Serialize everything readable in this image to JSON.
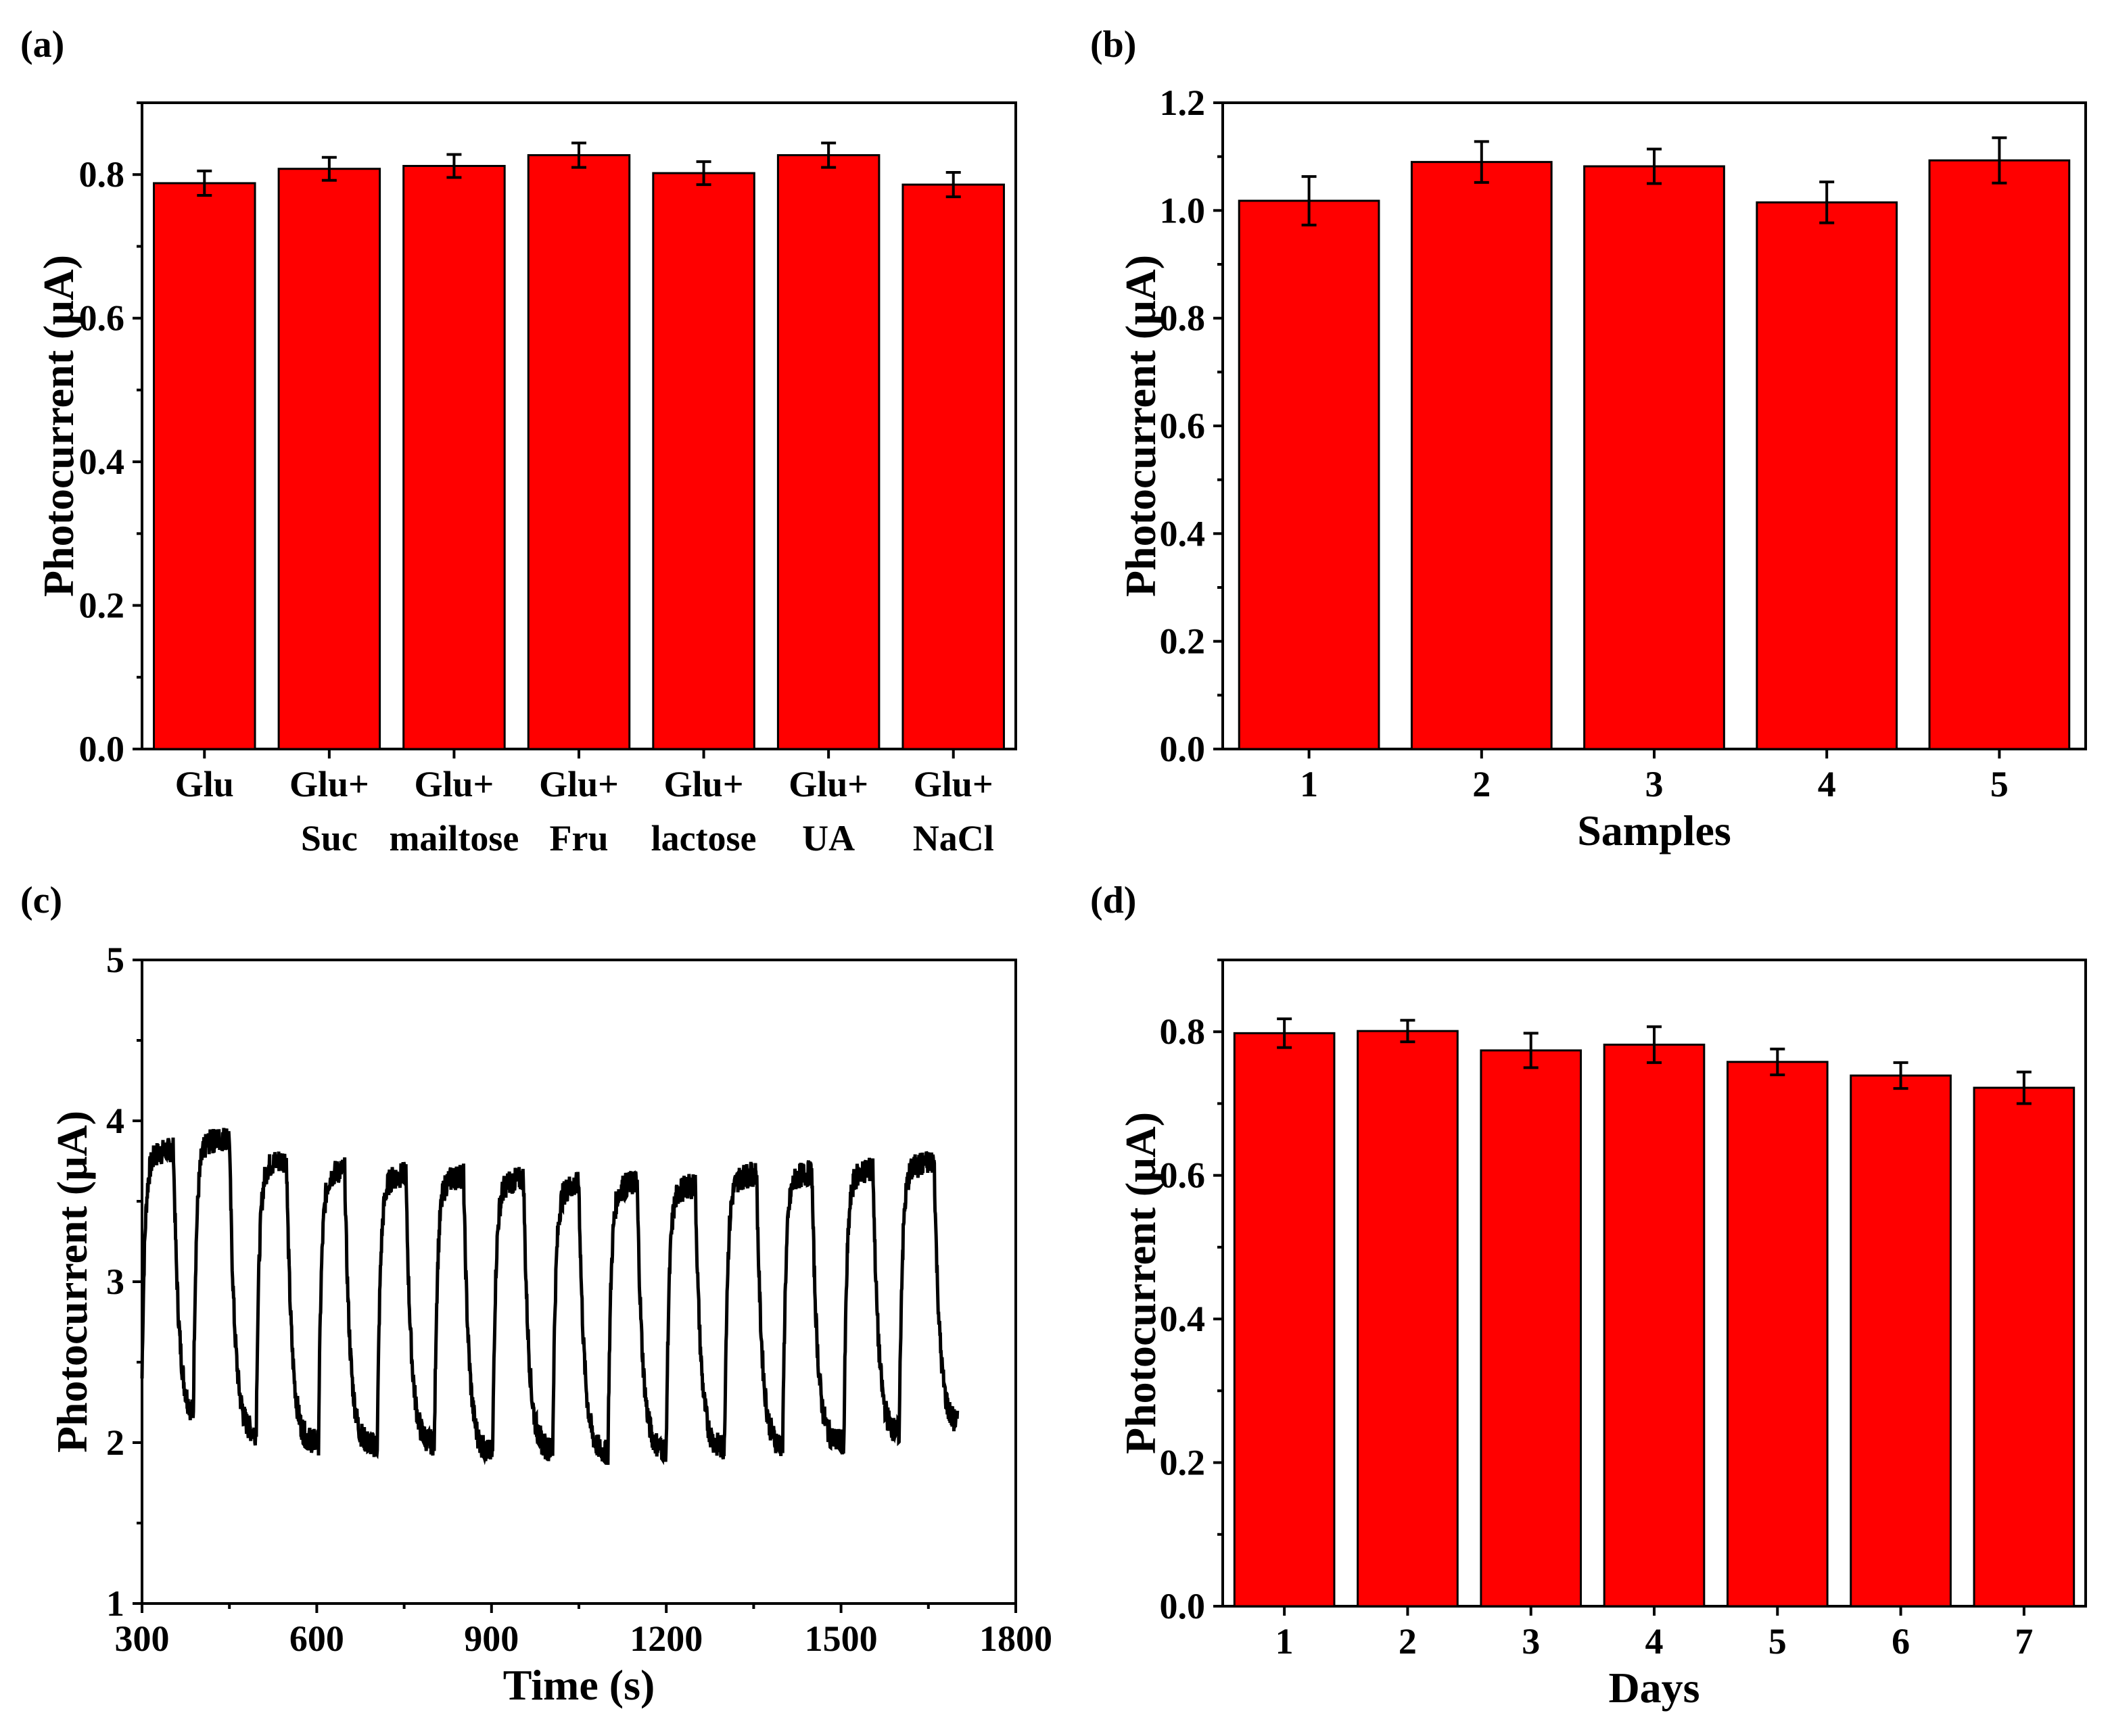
{
  "colors": {
    "bar": "#ff0000",
    "line": "#000000",
    "axis": "#000000"
  },
  "chart_data": [
    {
      "panel": "(a)",
      "type": "bar",
      "categories": [
        [
          "Glu",
          ""
        ],
        [
          "Glu+",
          "Suc"
        ],
        [
          "Glu+",
          "mailtose"
        ],
        [
          "Glu+",
          "Fru"
        ],
        [
          "Glu+",
          "lactose"
        ],
        [
          "Glu+",
          "UA"
        ],
        [
          "Glu+",
          "NaCl"
        ]
      ],
      "values": [
        0.788,
        0.808,
        0.812,
        0.827,
        0.802,
        0.827,
        0.786
      ],
      "errors": [
        0.017,
        0.016,
        0.016,
        0.017,
        0.016,
        0.017,
        0.017
      ],
      "xlabel": "",
      "ylabel": "Photocurrent (μA)",
      "ylim": [
        0,
        0.9
      ],
      "yticks": [
        "0.0",
        "0.2",
        "0.4",
        "0.6",
        "0.8"
      ]
    },
    {
      "panel": "(b)",
      "type": "bar",
      "categories": [
        [
          "1"
        ],
        [
          "2"
        ],
        [
          "3"
        ],
        [
          "4"
        ],
        [
          "5"
        ]
      ],
      "values": [
        1.018,
        1.09,
        1.082,
        1.015,
        1.093
      ],
      "errors": [
        0.045,
        0.038,
        0.032,
        0.038,
        0.042
      ],
      "xlabel": "Samples",
      "ylabel": "Photocurrent (μA)",
      "ylim": [
        0,
        1.2
      ],
      "yticks": [
        "0.0",
        "0.2",
        "0.4",
        "0.6",
        "0.8",
        "1.0",
        "1.2"
      ]
    },
    {
      "panel": "(c)",
      "type": "line",
      "xlabel": "Time (s)",
      "ylabel": "Photocurrent (μA)",
      "xlim": [
        300,
        1800
      ],
      "ylim": [
        1,
        5
      ],
      "xticks": [
        "300",
        "600",
        "900",
        "1200",
        "1500",
        "1800"
      ],
      "yticks": [
        "1",
        "2",
        "3",
        "4",
        "5"
      ],
      "x_start": 300,
      "x_end": 1700,
      "cycles": [
        {
          "on": 300,
          "off": 354,
          "high": 3.78,
          "low": 2.15
        },
        {
          "on": 388,
          "off": 450,
          "high": 3.85,
          "low": 2.05
        },
        {
          "on": 496,
          "off": 548,
          "high": 3.72,
          "low": 2.0
        },
        {
          "on": 603,
          "off": 648,
          "high": 3.66,
          "low": 1.98
        },
        {
          "on": 704,
          "off": 753,
          "high": 3.63,
          "low": 1.99
        },
        {
          "on": 802,
          "off": 852,
          "high": 3.62,
          "low": 1.93
        },
        {
          "on": 902,
          "off": 955,
          "high": 3.6,
          "low": 1.95
        },
        {
          "on": 1005,
          "off": 1050,
          "high": 3.57,
          "low": 1.93
        },
        {
          "on": 1100,
          "off": 1150,
          "high": 3.58,
          "low": 1.95
        },
        {
          "on": 1200,
          "off": 1250,
          "high": 3.56,
          "low": 1.96
        },
        {
          "on": 1300,
          "off": 1355,
          "high": 3.63,
          "low": 1.97
        },
        {
          "on": 1400,
          "off": 1450,
          "high": 3.64,
          "low": 2.0
        },
        {
          "on": 1505,
          "off": 1555,
          "high": 3.66,
          "low": 2.05
        },
        {
          "on": 1600,
          "off": 1660,
          "high": 3.7,
          "low": 2.1
        }
      ]
    },
    {
      "panel": "(d)",
      "type": "bar",
      "categories": [
        [
          "1"
        ],
        [
          "2"
        ],
        [
          "3"
        ],
        [
          "4"
        ],
        [
          "5"
        ],
        [
          "6"
        ],
        [
          "7"
        ]
      ],
      "values": [
        0.798,
        0.801,
        0.774,
        0.782,
        0.758,
        0.739,
        0.722
      ],
      "errors": [
        0.02,
        0.015,
        0.024,
        0.025,
        0.018,
        0.018,
        0.022
      ],
      "xlabel": "Days",
      "ylabel": "Photocurrent (μA)",
      "ylim": [
        0,
        0.9
      ],
      "yticks": [
        "0.0",
        "0.2",
        "0.4",
        "0.6",
        "0.8"
      ]
    }
  ]
}
